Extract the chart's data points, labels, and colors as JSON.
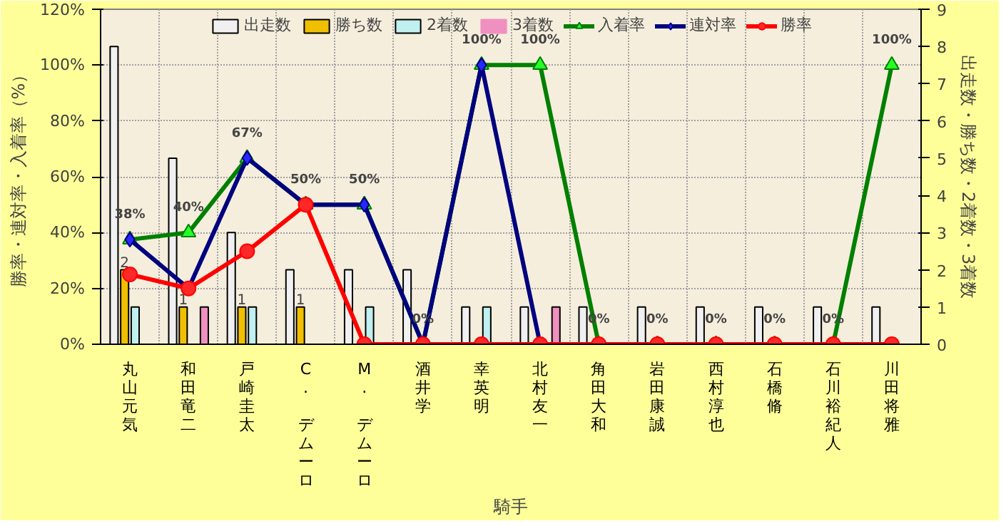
{
  "chart_data": {
    "type": "bar",
    "xlabel": "騎手",
    "ylabel": "勝率・連対率・入着率（%）",
    "y2label": "出走数・勝ち数・2着数・3着数",
    "categories": [
      "丸山元気",
      "和田竜二",
      "戸崎圭太",
      "C. デムーロ",
      "M. デムーロ",
      "酒井学",
      "幸英明",
      "北村友一",
      "角田大和",
      "岩田康誠",
      "西村淳也",
      "石橋脩",
      "石川裕紀人",
      "川田将雅"
    ],
    "series": [
      {
        "name": "出走数",
        "axis": "y2",
        "color": "#f0f0f0",
        "values": [
          8,
          5,
          3,
          2,
          2,
          2,
          1,
          1,
          1,
          1,
          1,
          1,
          1,
          1
        ]
      },
      {
        "name": "勝ち数",
        "axis": "y2",
        "color": "#f0c000",
        "values": [
          2,
          1,
          1,
          1,
          0,
          0,
          0,
          0,
          0,
          0,
          0,
          0,
          0,
          0
        ],
        "value_labels": [
          "2",
          "1",
          "1",
          "1",
          null,
          null,
          null,
          null,
          null,
          null,
          null,
          null,
          null,
          null
        ]
      },
      {
        "name": "2着数",
        "axis": "y2",
        "color": "#c0f0f0",
        "values": [
          1,
          0,
          1,
          0,
          1,
          0,
          1,
          0,
          0,
          0,
          0,
          0,
          0,
          0
        ]
      },
      {
        "name": "3着数",
        "axis": "y2",
        "color": "#f090c0",
        "values": [
          0,
          1,
          0,
          0,
          0,
          0,
          0,
          1,
          0,
          0,
          0,
          0,
          0,
          0
        ]
      },
      {
        "name": "入着率",
        "type": "line",
        "color": "#008000",
        "marker": "triangle",
        "values": [
          37.5,
          40,
          66.7,
          50,
          50,
          0,
          100,
          100,
          0,
          0,
          0,
          0,
          0,
          100
        ],
        "value_labels": [
          "38%",
          "40%",
          "67%",
          "50%",
          "50%",
          "0%",
          "100%",
          "100%",
          "0%",
          "0%",
          "0%",
          "0%",
          "0%",
          "100%"
        ]
      },
      {
        "name": "連対率",
        "type": "line",
        "color": "#000080",
        "marker": "diamond",
        "values": [
          37.5,
          20,
          66.7,
          50,
          50,
          0,
          100,
          0,
          0,
          null,
          null,
          null,
          null,
          null
        ]
      },
      {
        "name": "勝率",
        "type": "line",
        "color": "#ff0000",
        "marker": "circle",
        "values": [
          25,
          20,
          33.3,
          50,
          0,
          0,
          0,
          0,
          0,
          0,
          0,
          0,
          0,
          0
        ]
      }
    ],
    "ylim": [
      0,
      120
    ],
    "yticks": [
      {
        "value": 0,
        "label": "0%"
      },
      {
        "value": 20,
        "label": "20%"
      },
      {
        "value": 40,
        "label": "40%"
      },
      {
        "value": 60,
        "label": "60%"
      },
      {
        "value": 80,
        "label": "80%"
      },
      {
        "value": 100,
        "label": "100%"
      },
      {
        "value": 120,
        "label": "120%"
      }
    ],
    "y2lim": [
      0,
      9
    ],
    "y2ticks": [
      0,
      1,
      2,
      3,
      4,
      5,
      6,
      7,
      8,
      9
    ],
    "grid": true,
    "legend": "top"
  }
}
